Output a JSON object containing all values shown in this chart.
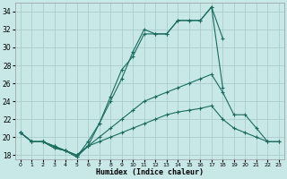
{
  "xlabel": "Humidex (Indice chaleur)",
  "xlim": [
    -0.5,
    23.5
  ],
  "ylim": [
    17.5,
    35.0
  ],
  "yticks": [
    18,
    20,
    22,
    24,
    26,
    28,
    30,
    32,
    34
  ],
  "xticks": [
    0,
    1,
    2,
    3,
    4,
    5,
    6,
    7,
    8,
    9,
    10,
    11,
    12,
    13,
    14,
    15,
    16,
    17,
    18,
    19,
    20,
    21,
    22,
    23
  ],
  "bg_color": "#c8e8e8",
  "grid_color": "#aacccc",
  "line_color": "#1a6b5e",
  "lines": [
    {
      "x": [
        0,
        1,
        2,
        3,
        4,
        5,
        6,
        7,
        8,
        9,
        10,
        11,
        12,
        13,
        14,
        15,
        16,
        17,
        18
      ],
      "y": [
        20.5,
        19.5,
        19.5,
        18.8,
        18.5,
        17.8,
        19.5,
        21.5,
        24.5,
        27.5,
        29.0,
        31.5,
        31.5,
        31.5,
        33.0,
        33.0,
        33.0,
        34.5,
        31.0
      ]
    },
    {
      "x": [
        0,
        1,
        2,
        3,
        4,
        5,
        6,
        7,
        8,
        9,
        10,
        11,
        12,
        13,
        14,
        15,
        16,
        17,
        18
      ],
      "y": [
        20.5,
        19.5,
        19.5,
        18.8,
        18.5,
        17.8,
        19.0,
        21.5,
        24.0,
        26.5,
        29.5,
        32.0,
        31.5,
        31.5,
        33.0,
        33.0,
        33.0,
        34.5,
        25.5
      ]
    },
    {
      "x": [
        0,
        1,
        2,
        3,
        4,
        5,
        6,
        7,
        8,
        9,
        10,
        11,
        12,
        13,
        14,
        15,
        16,
        17,
        18,
        19,
        20,
        21,
        22,
        23
      ],
      "y": [
        20.5,
        19.5,
        19.5,
        19.0,
        18.5,
        18.0,
        19.0,
        20.0,
        21.0,
        22.0,
        23.0,
        24.0,
        24.5,
        25.0,
        25.5,
        26.0,
        26.5,
        27.0,
        25.0,
        22.5,
        22.5,
        21.0,
        19.5,
        19.5
      ]
    },
    {
      "x": [
        0,
        1,
        2,
        3,
        4,
        5,
        6,
        7,
        8,
        9,
        10,
        11,
        12,
        13,
        14,
        15,
        16,
        17,
        18,
        19,
        20,
        21,
        22,
        23
      ],
      "y": [
        20.5,
        19.5,
        19.5,
        19.0,
        18.5,
        18.0,
        19.0,
        19.5,
        20.0,
        20.5,
        21.0,
        21.5,
        22.0,
        22.5,
        22.8,
        23.0,
        23.2,
        23.5,
        22.0,
        21.0,
        20.5,
        20.0,
        19.5,
        19.5
      ]
    }
  ]
}
